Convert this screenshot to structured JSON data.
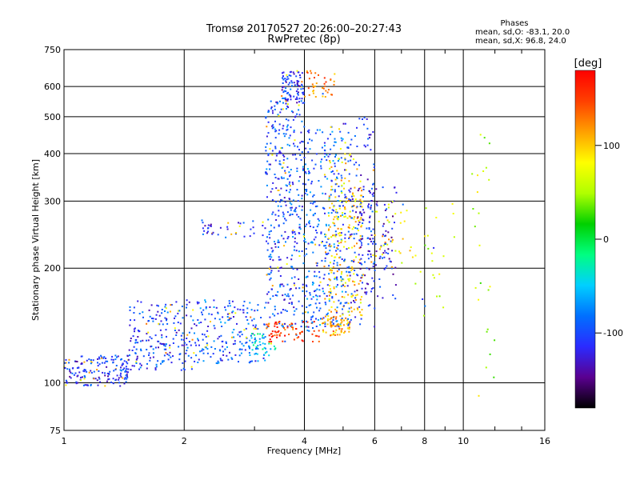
{
  "header": {
    "title_line1": "Tromsø 20170527 20:26:00–20:27:43",
    "title_line2": "RwPretec (8p)",
    "phases_title": "Phases",
    "phases_o": "mean, sd,O: -83.1, 20.0",
    "phases_x": "mean, sd,X: 96.8, 24.0"
  },
  "chart_data": {
    "type": "scatter",
    "title": "Tromsø 20170527 20:26:00–20:27:43",
    "subtitle": "RwPretec (8p)",
    "xlabel": "Frequency [MHz]",
    "ylabel": "Stationary phase Virtual Height [km]",
    "x_scale": "log",
    "y_scale": "log",
    "xlim": [
      1,
      16
    ],
    "ylim": [
      75,
      750
    ],
    "x_ticks": [
      1,
      2,
      4,
      6,
      8,
      10,
      16
    ],
    "x_tick_labels": [
      "1",
      "2",
      "4",
      "6",
      "8",
      "10",
      "16"
    ],
    "y_ticks": [
      75,
      100,
      200,
      300,
      400,
      500,
      600,
      750
    ],
    "y_tick_labels": [
      "75",
      "100",
      "200",
      "300",
      "400",
      "500",
      "600",
      "750"
    ],
    "grid": true,
    "colorbar": {
      "label": "[deg]",
      "range": [
        -180,
        180
      ],
      "ticks": [
        100,
        0,
        -100
      ],
      "tick_labels": [
        "100",
        "0",
        "-100"
      ],
      "colors": [
        "#000000",
        "#5a0090",
        "#2b2bff",
        "#0070ff",
        "#00d0ff",
        "#00ff80",
        "#00d000",
        "#b0ff00",
        "#ffff00",
        "#ffa000",
        "#ff4000",
        "#ff0000"
      ]
    },
    "clusters": [
      {
        "x0": 1.0,
        "x1": 1.45,
        "y0": 98,
        "y1": 118,
        "phase": -110,
        "n": 170
      },
      {
        "x0": 1.45,
        "x1": 2.1,
        "y0": 108,
        "y1": 165,
        "phase": -105,
        "n": 200
      },
      {
        "x0": 2.1,
        "x1": 3.2,
        "y0": 112,
        "y1": 165,
        "phase": -95,
        "n": 200
      },
      {
        "x0": 2.9,
        "x1": 3.4,
        "y0": 118,
        "y1": 135,
        "phase": -40,
        "n": 40
      },
      {
        "x0": 2.2,
        "x1": 3.2,
        "y0": 240,
        "y1": 270,
        "phase": -110,
        "n": 40
      },
      {
        "x0": 3.2,
        "x1": 4.0,
        "y0": 140,
        "y1": 550,
        "phase": -100,
        "n": 380
      },
      {
        "x0": 3.5,
        "x1": 4.0,
        "y0": 540,
        "y1": 660,
        "phase": -110,
        "n": 90
      },
      {
        "x0": 3.2,
        "x1": 4.4,
        "y0": 128,
        "y1": 145,
        "phase": 150,
        "n": 80
      },
      {
        "x0": 4.0,
        "x1": 5.0,
        "y0": 140,
        "y1": 470,
        "phase": -90,
        "n": 320
      },
      {
        "x0": 4.0,
        "x1": 4.8,
        "y0": 560,
        "y1": 660,
        "phase": 130,
        "n": 40
      },
      {
        "x0": 4.6,
        "x1": 5.6,
        "y0": 150,
        "y1": 400,
        "phase": 95,
        "n": 220
      },
      {
        "x0": 4.4,
        "x1": 5.2,
        "y0": 133,
        "y1": 150,
        "phase": 110,
        "n": 70
      },
      {
        "x0": 5.0,
        "x1": 6.0,
        "y0": 140,
        "y1": 500,
        "phase": -110,
        "n": 160
      },
      {
        "x0": 5.4,
        "x1": 6.8,
        "y0": 165,
        "y1": 330,
        "phase": -120,
        "n": 120
      },
      {
        "x0": 6.0,
        "x1": 7.5,
        "y0": 200,
        "y1": 300,
        "phase": 80,
        "n": 30
      },
      {
        "x0": 7.5,
        "x1": 9.5,
        "y0": 150,
        "y1": 300,
        "phase": 60,
        "n": 25
      },
      {
        "x0": 10.5,
        "x1": 12.0,
        "y0": 80,
        "y1": 500,
        "phase": 60,
        "n": 25
      }
    ]
  }
}
